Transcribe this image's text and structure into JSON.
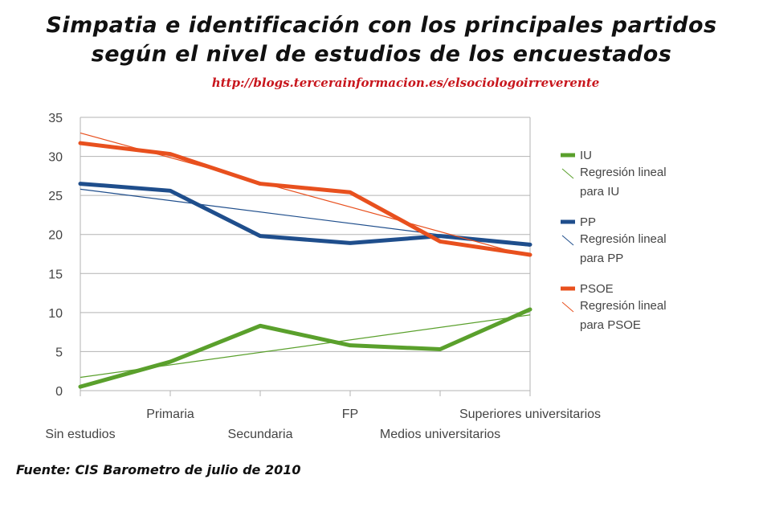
{
  "chart_data": {
    "type": "line",
    "title_line1": "Simpatia e identificación con los principales partidos",
    "title_line2": "según  el nivel de estudios de los encuestados",
    "subtitle": "http://blogs.tercerainformacion.es/elsociologoirreverente",
    "source": "Fuente: CIS Barometro de julio de 2010",
    "categories": [
      "Sin estudios",
      "Primaria",
      "Secundaria",
      "FP",
      "Medios universitarios",
      "Superiores universitarios"
    ],
    "ylim": [
      0,
      35
    ],
    "yticks": [
      "0",
      "5",
      "10",
      "15",
      "20",
      "25",
      "30",
      "35"
    ],
    "grid": true,
    "legend_position": "right",
    "series": [
      {
        "name": "IU",
        "color": "#5aa02c",
        "values": [
          0.5,
          3.7,
          8.3,
          5.8,
          5.3,
          10.4
        ],
        "trend_name": "Regresión lineal para IU",
        "trend": [
          1.7,
          9.7
        ]
      },
      {
        "name": "PP",
        "color": "#1f4e8c",
        "values": [
          26.5,
          25.6,
          19.8,
          18.9,
          19.8,
          18.7
        ],
        "trend_name": "Regresión lineal para PP",
        "trend": [
          25.8,
          18.5
        ]
      },
      {
        "name": "PSOE",
        "color": "#e8501e",
        "values": [
          31.7,
          30.3,
          26.5,
          25.4,
          19.1,
          17.4
        ],
        "trend_name": "Regresión lineal para PSOE",
        "trend": [
          33.0,
          17.2
        ]
      }
    ]
  }
}
